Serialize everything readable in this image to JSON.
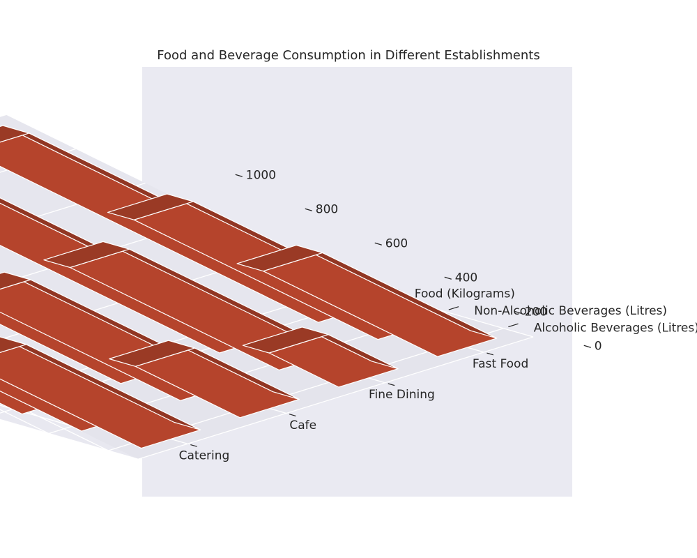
{
  "chart_data": {
    "type": "bar3d",
    "title": "Food and Beverage Consumption in Different Establishments",
    "xlabel": "",
    "ylabel": "",
    "zlabel": "",
    "categories": [
      "Catering",
      "Cafe",
      "Fine Dining",
      "Fast Food"
    ],
    "series": [
      {
        "name": "Alcoholic Beverages (Litres)",
        "values": [
          500,
          300,
          200,
          500
        ]
      },
      {
        "name": "Non-Alcoholic Beverages (Litres)",
        "values": [
          700,
          600,
          600,
          700
        ]
      },
      {
        "name": "Food (Kilograms)",
        "values": [
          1000,
          800,
          800,
          1000
        ]
      }
    ],
    "zticks": [
      0,
      200,
      400,
      600,
      800,
      1000
    ],
    "zlim": [
      0,
      1000
    ],
    "bar_color": "#b5442c",
    "pane_color": "#eaeaf2",
    "grid": true
  }
}
